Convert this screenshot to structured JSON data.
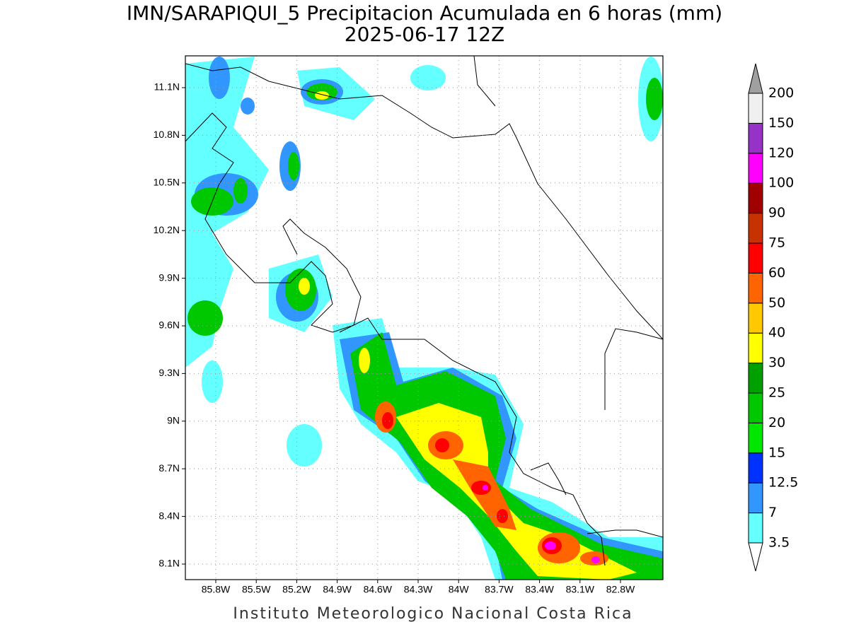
{
  "title": "IMN/SARAPIQUI_5 Precipitacion Acumulada en 6 horas (mm)",
  "subtitle": "2025-06-17 12Z",
  "footer": "Instituto Meteorologico Nacional Costa Rica",
  "map": {
    "lat_labels": [
      "8.1N",
      "8.4N",
      "8.7N",
      "9N",
      "9.3N",
      "9.6N",
      "9.9N",
      "10.2N",
      "10.5N",
      "10.8N",
      "11.1N"
    ],
    "lon_labels": [
      "85.8W",
      "85.5W",
      "85.2W",
      "84.9W",
      "84.6W",
      "84.3W",
      "84W",
      "83.7W",
      "83.4W",
      "83.1W",
      "82.8W"
    ]
  },
  "legend": {
    "levels": [
      3.5,
      7,
      12.5,
      15,
      20,
      25,
      30,
      40,
      50,
      60,
      75,
      90,
      100,
      120,
      150,
      200
    ],
    "colors": [
      "#ffffff",
      "#64ffff",
      "#3296ff",
      "#0032ff",
      "#00e600",
      "#00c800",
      "#00a000",
      "#ffff00",
      "#ffc800",
      "#ff6400",
      "#ff0000",
      "#c83200",
      "#a00000",
      "#ff00ff",
      "#9632c8",
      "#f0f0f0",
      "#a0a0a0"
    ]
  }
}
